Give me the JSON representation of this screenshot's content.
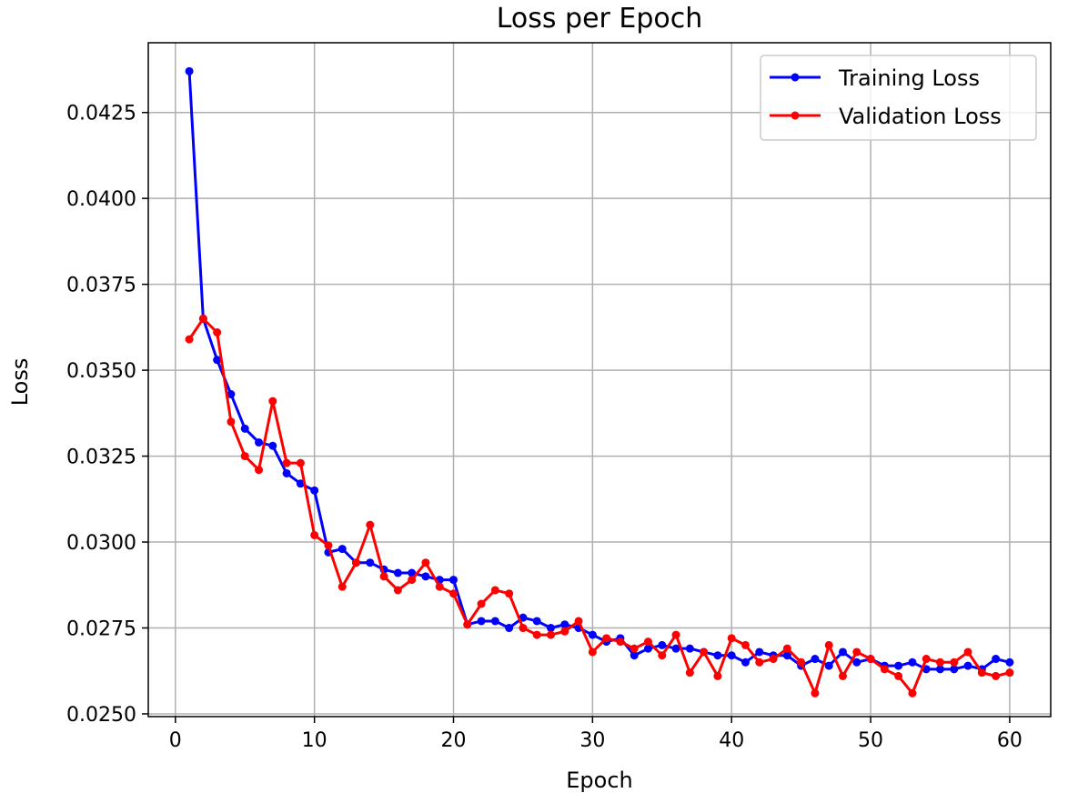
{
  "chart_data": {
    "type": "line",
    "title": "Loss per Epoch",
    "xlabel": "Epoch",
    "ylabel": "Loss",
    "xlim": [
      -1.95,
      62.95
    ],
    "ylim": [
      0.02492,
      0.04453
    ],
    "xticks": [
      0,
      10,
      20,
      30,
      40,
      50,
      60
    ],
    "yticks": [
      0.025,
      0.0275,
      0.03,
      0.0325,
      0.035,
      0.0375,
      0.04,
      0.0425
    ],
    "ytick_labels": [
      "0.0250",
      "0.0275",
      "0.0300",
      "0.0325",
      "0.0350",
      "0.0375",
      "0.0400",
      "0.0425"
    ],
    "grid": true,
    "legend_position": "top-right",
    "x": [
      1,
      2,
      3,
      4,
      5,
      6,
      7,
      8,
      9,
      10,
      11,
      12,
      13,
      14,
      15,
      16,
      17,
      18,
      19,
      20,
      21,
      22,
      23,
      24,
      25,
      26,
      27,
      28,
      29,
      30,
      31,
      32,
      33,
      34,
      35,
      36,
      37,
      38,
      39,
      40,
      41,
      42,
      43,
      44,
      45,
      46,
      47,
      48,
      49,
      50,
      51,
      52,
      53,
      54,
      55,
      56,
      57,
      58,
      59,
      60
    ],
    "series": [
      {
        "name": "Training Loss",
        "color": "#0000ff",
        "values": [
          0.0437,
          0.0365,
          0.0353,
          0.0343,
          0.0333,
          0.0329,
          0.0328,
          0.032,
          0.0317,
          0.0315,
          0.0297,
          0.0298,
          0.0294,
          0.0294,
          0.0292,
          0.0291,
          0.0291,
          0.029,
          0.0289,
          0.0289,
          0.0276,
          0.0277,
          0.0277,
          0.0275,
          0.0278,
          0.0277,
          0.0275,
          0.0276,
          0.0275,
          0.0273,
          0.0271,
          0.0272,
          0.0267,
          0.0269,
          0.027,
          0.0269,
          0.0269,
          0.0268,
          0.0267,
          0.0267,
          0.0265,
          0.0268,
          0.0267,
          0.0267,
          0.0264,
          0.0266,
          0.0264,
          0.0268,
          0.0265,
          0.0266,
          0.0264,
          0.0264,
          0.0265,
          0.0263,
          0.0263,
          0.0263,
          0.0264,
          0.0263,
          0.0266,
          0.0265
        ]
      },
      {
        "name": "Validation Loss",
        "color": "#ff0000",
        "values": [
          0.0359,
          0.0365,
          0.0361,
          0.0335,
          0.0325,
          0.0321,
          0.0341,
          0.0323,
          0.0323,
          0.0302,
          0.0299,
          0.0287,
          0.0294,
          0.0305,
          0.029,
          0.0286,
          0.0289,
          0.0294,
          0.0287,
          0.0285,
          0.0276,
          0.0282,
          0.0286,
          0.0285,
          0.0275,
          0.0273,
          0.0273,
          0.0274,
          0.0277,
          0.0268,
          0.0272,
          0.0271,
          0.0269,
          0.0271,
          0.0267,
          0.0273,
          0.0262,
          0.0268,
          0.0261,
          0.0272,
          0.027,
          0.0265,
          0.0266,
          0.0269,
          0.0265,
          0.0256,
          0.027,
          0.0261,
          0.0268,
          0.0266,
          0.0263,
          0.0261,
          0.0256,
          0.0266,
          0.0265,
          0.0265,
          0.0268,
          0.0262,
          0.0261,
          0.0262
        ]
      }
    ]
  }
}
